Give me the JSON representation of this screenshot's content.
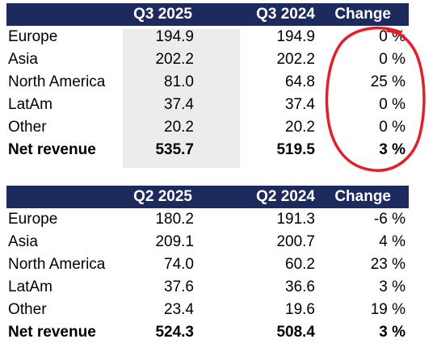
{
  "tables": [
    {
      "headers": {
        "current": "Q3 2025",
        "previous": "Q3 2024",
        "change": "Change"
      },
      "rows": [
        {
          "label": "Europe",
          "current": "194.9",
          "previous": "194.9",
          "change": "0 %"
        },
        {
          "label": "Asia",
          "current": "202.2",
          "previous": "202.2",
          "change": "0 %"
        },
        {
          "label": "North America",
          "current": "81.0",
          "previous": "64.8",
          "change": "25 %"
        },
        {
          "label": "LatAm",
          "current": "37.4",
          "previous": "37.4",
          "change": "0 %"
        },
        {
          "label": "Other",
          "current": "20.2",
          "previous": "20.2",
          "change": "0 %"
        }
      ],
      "total": {
        "label": "Net revenue",
        "current": "535.7",
        "previous": "519.5",
        "change": "3 %"
      }
    },
    {
      "headers": {
        "current": "Q2 2025",
        "previous": "Q2 2024",
        "change": "Change"
      },
      "rows": [
        {
          "label": "Europe",
          "current": "180.2",
          "previous": "191.3",
          "change": "-6 %"
        },
        {
          "label": "Asia",
          "current": "209.1",
          "previous": "200.7",
          "change": "4 %"
        },
        {
          "label": "North America",
          "current": "74.0",
          "previous": "60.2",
          "change": "23 %"
        },
        {
          "label": "LatAm",
          "current": "37.6",
          "previous": "36.6",
          "change": "3 %"
        },
        {
          "label": "Other",
          "current": "23.4",
          "previous": "19.6",
          "change": "19 %"
        }
      ],
      "total": {
        "label": "Net revenue",
        "current": "524.3",
        "previous": "508.4",
        "change": "3 %"
      }
    }
  ],
  "colors": {
    "header_bg": "#1c2a5e",
    "header_text": "#ffffff",
    "highlight_bg": "#ececec",
    "annotation": "#e0202a"
  }
}
